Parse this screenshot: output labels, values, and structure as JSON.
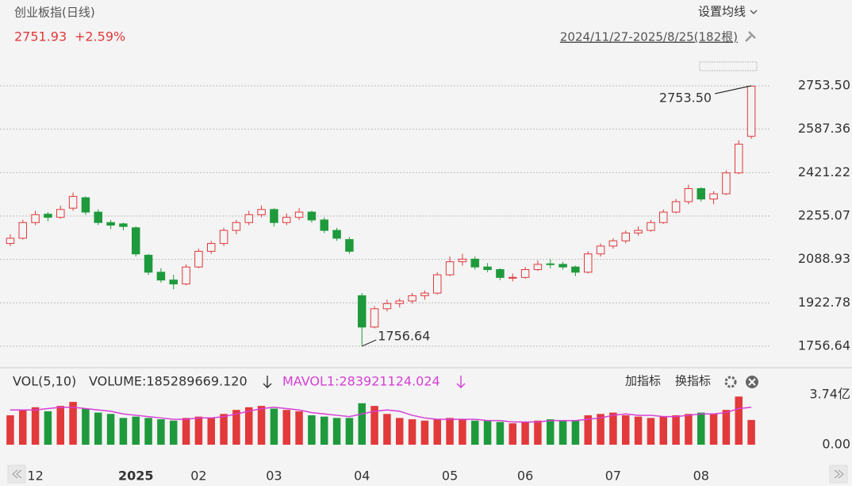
{
  "header": {
    "title": "创业板指(日线)",
    "price": "2751.93",
    "change": "+2.59%",
    "ma_setting": "设置均线",
    "range": "2024/11/27-2025/8/25(182根)"
  },
  "chart_data": {
    "type": "candlestick",
    "candles": [
      [
        2150,
        2185,
        2140,
        2170
      ],
      [
        2170,
        2240,
        2165,
        2230
      ],
      [
        2230,
        2275,
        2220,
        2260
      ],
      [
        2262,
        2270,
        2235,
        2250
      ],
      [
        2250,
        2295,
        2245,
        2280
      ],
      [
        2285,
        2345,
        2275,
        2330
      ],
      [
        2325,
        2330,
        2260,
        2270
      ],
      [
        2270,
        2280,
        2220,
        2230
      ],
      [
        2230,
        2240,
        2205,
        2220
      ],
      [
        2225,
        2230,
        2200,
        2215
      ],
      [
        2210,
        2215,
        2100,
        2110
      ],
      [
        2105,
        2110,
        2030,
        2040
      ],
      [
        2040,
        2055,
        2000,
        2010
      ],
      [
        2010,
        2030,
        1975,
        1995
      ],
      [
        1995,
        2070,
        1990,
        2060
      ],
      [
        2060,
        2130,
        2055,
        2120
      ],
      [
        2120,
        2160,
        2110,
        2150
      ],
      [
        2150,
        2210,
        2140,
        2200
      ],
      [
        2200,
        2240,
        2185,
        2230
      ],
      [
        2230,
        2275,
        2220,
        2260
      ],
      [
        2260,
        2295,
        2250,
        2280
      ],
      [
        2280,
        2285,
        2215,
        2230
      ],
      [
        2230,
        2265,
        2220,
        2250
      ],
      [
        2250,
        2285,
        2240,
        2270
      ],
      [
        2270,
        2275,
        2230,
        2240
      ],
      [
        2240,
        2250,
        2190,
        2200
      ],
      [
        2200,
        2210,
        2160,
        2170
      ],
      [
        2165,
        2175,
        2110,
        2120
      ],
      [
        1950,
        1960,
        1756.64,
        1830
      ],
      [
        1830,
        1910,
        1825,
        1900
      ],
      [
        1900,
        1935,
        1890,
        1920
      ],
      [
        1920,
        1940,
        1905,
        1930
      ],
      [
        1930,
        1960,
        1920,
        1950
      ],
      [
        1950,
        1970,
        1935,
        1960
      ],
      [
        1960,
        2040,
        1955,
        2030
      ],
      [
        2030,
        2100,
        2025,
        2080
      ],
      [
        2080,
        2110,
        2065,
        2090
      ],
      [
        2090,
        2100,
        2050,
        2060
      ],
      [
        2060,
        2075,
        2040,
        2050
      ],
      [
        2050,
        2055,
        2010,
        2020
      ],
      [
        2020,
        2035,
        2005,
        2020
      ],
      [
        2020,
        2060,
        2015,
        2050
      ],
      [
        2050,
        2085,
        2045,
        2070
      ],
      [
        2072,
        2090,
        2055,
        2070
      ],
      [
        2070,
        2080,
        2050,
        2060
      ],
      [
        2060,
        2065,
        2025,
        2040
      ],
      [
        2040,
        2120,
        2035,
        2110
      ],
      [
        2110,
        2150,
        2100,
        2140
      ],
      [
        2140,
        2170,
        2130,
        2160
      ],
      [
        2160,
        2200,
        2150,
        2190
      ],
      [
        2190,
        2215,
        2180,
        2200
      ],
      [
        2200,
        2240,
        2195,
        2230
      ],
      [
        2230,
        2280,
        2225,
        2270
      ],
      [
        2270,
        2320,
        2265,
        2310
      ],
      [
        2310,
        2375,
        2300,
        2360
      ],
      [
        2360,
        2365,
        2310,
        2320
      ],
      [
        2320,
        2350,
        2300,
        2340
      ],
      [
        2340,
        2430,
        2335,
        2420
      ],
      [
        2420,
        2545,
        2415,
        2530
      ],
      [
        2560,
        2753.5,
        2550,
        2751.93
      ]
    ],
    "up_color": "#e2393b",
    "down_color": "#1e9a3c",
    "ylim": [
      1756.64,
      2753.5
    ],
    "yticks": [
      {
        "value": 2753.5,
        "label": "2753.50"
      },
      2587.36,
      2421.22,
      2255.07,
      2088.93,
      1922.78,
      1756.64
    ],
    "grid": true,
    "xticks": [
      {
        "value": 2,
        "label": "12"
      },
      {
        "value": 10,
        "label": "2025"
      },
      {
        "value": 15,
        "label": "02"
      },
      {
        "value": 21,
        "label": "03"
      },
      {
        "value": 28,
        "label": "04"
      },
      {
        "value": 35,
        "label": "05"
      },
      {
        "value": 41,
        "label": "06"
      },
      {
        "value": 48,
        "label": "07"
      },
      {
        "value": 55,
        "label": "08"
      }
    ],
    "annotations": [
      {
        "label": "2753.50",
        "value": 2753.5,
        "index": 59
      },
      {
        "label": "1756.64",
        "value": 1756.64,
        "index": 28
      }
    ],
    "volume": {
      "legend": [
        "VOL(5,10)",
        "VOLUME:185289669.120",
        "MAVOL1:283921124.024"
      ],
      "values": [
        2.2,
        2.6,
        2.8,
        2.5,
        2.9,
        3.2,
        2.7,
        2.4,
        2.3,
        2.0,
        2.1,
        2.0,
        1.9,
        1.8,
        2.0,
        2.1,
        2.0,
        2.3,
        2.6,
        2.8,
        2.9,
        2.7,
        2.6,
        2.5,
        2.2,
        2.1,
        2.0,
        2.0,
        3.1,
        2.9,
        2.3,
        2.0,
        1.9,
        1.8,
        1.9,
        2.0,
        1.9,
        1.8,
        1.8,
        1.7,
        1.6,
        1.7,
        1.8,
        1.9,
        1.8,
        1.8,
        2.2,
        2.3,
        2.4,
        2.2,
        2.1,
        2.0,
        2.1,
        2.2,
        2.3,
        2.4,
        2.3,
        2.6,
        3.6,
        1.85
      ],
      "mavol": [
        2.6,
        2.6,
        2.6,
        2.7,
        2.8,
        2.8,
        2.7,
        2.6,
        2.5,
        2.3,
        2.2,
        2.1,
        2.0,
        1.9,
        1.9,
        2.0,
        2.0,
        2.1,
        2.3,
        2.5,
        2.7,
        2.8,
        2.7,
        2.6,
        2.4,
        2.3,
        2.2,
        2.1,
        2.3,
        2.5,
        2.6,
        2.5,
        2.2,
        2.0,
        1.9,
        1.9,
        1.9,
        1.9,
        1.8,
        1.8,
        1.7,
        1.7,
        1.7,
        1.8,
        1.8,
        1.8,
        1.9,
        2.0,
        2.2,
        2.3,
        2.2,
        2.2,
        2.1,
        2.1,
        2.2,
        2.3,
        2.3,
        2.4,
        2.7,
        2.8
      ],
      "mavol_color": "#d63fd6",
      "ylim": [
        0,
        3.74
      ],
      "yticks": [
        {
          "value": 3.74,
          "label": "3.74亿"
        },
        {
          "value": 0,
          "label": "0.00"
        }
      ]
    },
    "buttons": [
      "加指标",
      "换指标"
    ]
  }
}
